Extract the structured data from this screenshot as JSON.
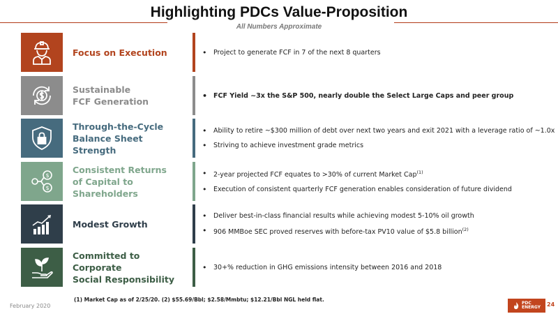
{
  "header": {
    "title": "Highlighting PDCs Value-Proposition",
    "subtitle": "All Numbers Approximate"
  },
  "rows": [
    {
      "label": "Focus on Execution",
      "icon": "worker-icon",
      "color": "#b2441e",
      "bullets": [
        "Project to generate FCF in 7 of the next 8 quarters"
      ]
    },
    {
      "label": "Sustainable\nFCF Generation",
      "icon": "dollar-cycle-icon",
      "color": "#8c8c8c",
      "bullets": [
        "FCF Yield ~3x the S&P 500, nearly double the Select Large Caps and peer group"
      ]
    },
    {
      "label": "Through-the-Cycle\nBalance Sheet Strength",
      "icon": "shield-lock-icon",
      "color": "#466b7e",
      "bullets": [
        "Ability to retire ~$300 million of debt over next two years and exit 2021 with a leverage ratio of ~1.0x",
        "Striving to achieve investment grade metrics"
      ]
    },
    {
      "label": "Consistent Returns\nof Capital to Shareholders",
      "icon": "dollar-network-icon",
      "color": "#7fa68c",
      "bullets": [
        "2-year projected FCF equates to >30% of current Market Cap",
        "Execution of consistent quarterly FCF generation enables consideration of future dividend"
      ],
      "sup": "(1)"
    },
    {
      "label": "Modest Growth",
      "icon": "growth-chart-icon",
      "color": "#2f3e4a",
      "bullets": [
        "Deliver best-in-class financial results while achieving modest 5-10% oil growth",
        "906 MMBoe SEC proved reserves with before-tax PV10 value of $5.8 billion"
      ],
      "sup": "(2)"
    },
    {
      "label": "Committed to Corporate\nSocial Responsibility",
      "icon": "sprout-hand-icon",
      "color": "#3d5e46",
      "bullets": [
        "30+% reduction in GHG emissions intensity between 2016 and 2018"
      ]
    }
  ],
  "footer": {
    "footnote": "(1) Market Cap as of 2/25/20. (2) $55.69/Bbl; $2.58/Mmbtu; $12.21/Bbl NGL held flat.",
    "date": "February 2020",
    "logo_line1": "PDC",
    "logo_line2": "ENERGY",
    "page": "24"
  }
}
